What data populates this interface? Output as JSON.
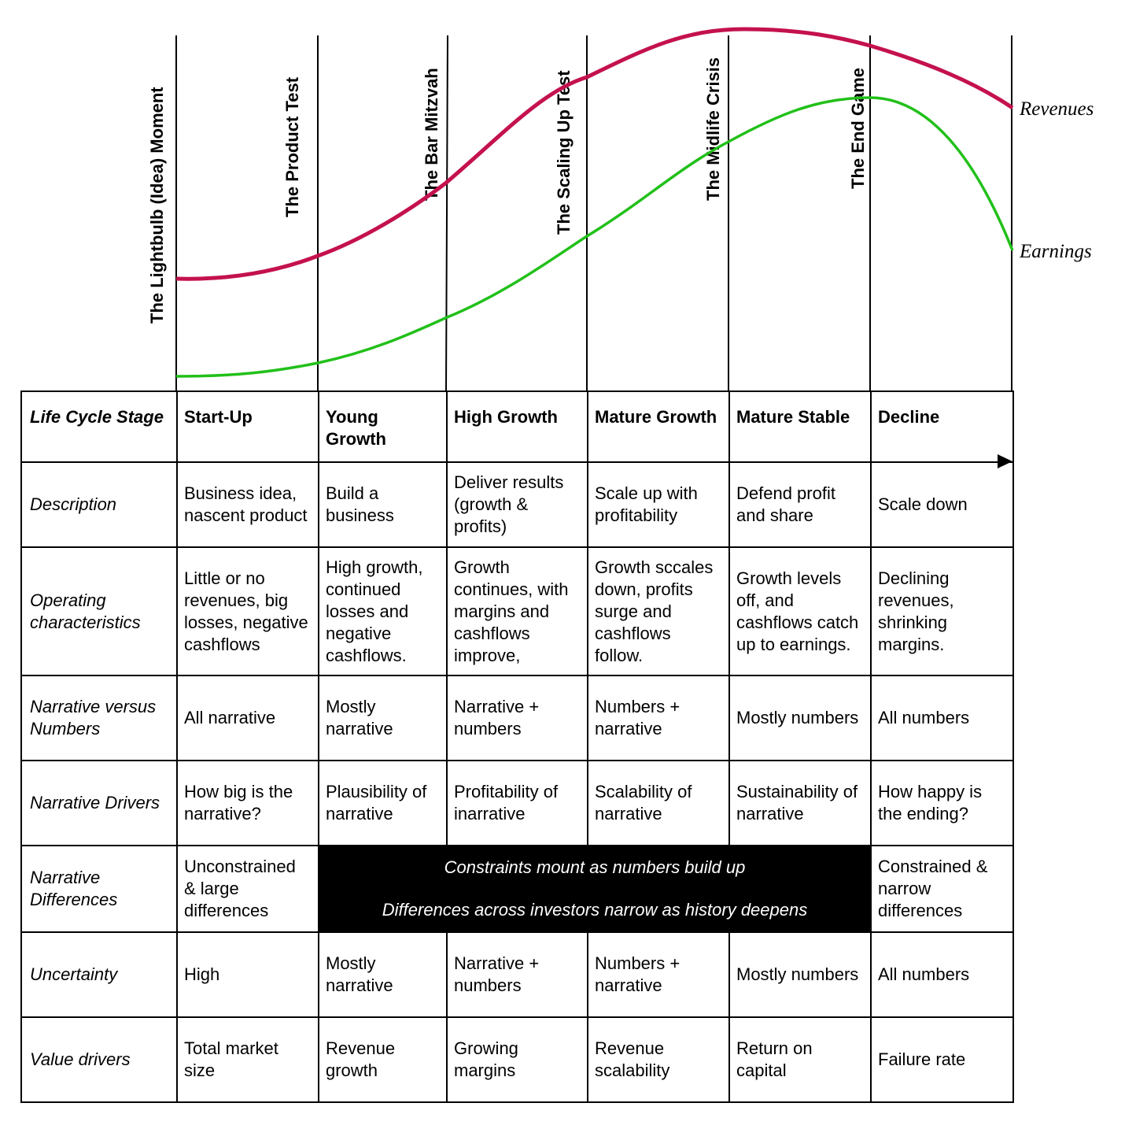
{
  "milestones": [
    "The Lightbulb (Idea) Moment",
    "The Product Test",
    "The Bar Mitzvah",
    "The Scaling Up Test",
    "The Midlife Crisis",
    "The End Game"
  ],
  "curves": {
    "revenues": {
      "label": "Revenues",
      "color": "#c4114f"
    },
    "earnings": {
      "label": "Earnings",
      "color": "#22c01a"
    }
  },
  "table": {
    "stage_header": "Life Cycle Stage",
    "stages": [
      "Start-Up",
      "Young Growth",
      "High Growth",
      "Mature Growth",
      "Mature Stable",
      "Decline"
    ],
    "rows": [
      {
        "label": "Description",
        "cells": [
          "Business idea, nascent product",
          "Build a business",
          "Deliver results (growth & profits)",
          "Scale up with profitability",
          "Defend profit and share",
          "Scale down"
        ]
      },
      {
        "label": "Operating characteristics",
        "cells": [
          "Little or no revenues, big losses, negative cashflows",
          "High growth, continued losses and negative cashflows.",
          "Growth continues, with margins and cashflows improve,",
          "Growth sccales down, profits surge and cashflows follow.",
          "Growth levels off, and cashflows catch up to earnings.",
          "Declining revenues, shrinking margins."
        ]
      },
      {
        "label": "Narrative versus Numbers",
        "cells": [
          "All narrative",
          "Mostly narrative",
          "Narrative + numbers",
          "Numbers + narrative",
          "Mostly numbers",
          "All numbers"
        ]
      },
      {
        "label": "Narrative Drivers",
        "cells": [
          "How big is the narrative?",
          "Plausibility of narrative",
          "Profitability of inarrative",
          "Scalability of narrative",
          "Sustainability of narrative",
          "How happy is the ending?"
        ]
      }
    ],
    "differences": {
      "label": "Narrative Differences",
      "first": "Unconstrained & large differences",
      "banner_line1": "Constraints mount as numbers build up",
      "banner_line2": "Differences across investors narrow as history deepens",
      "last": "Constrained & narrow differences"
    },
    "rows_after": [
      {
        "label": "Uncertainty",
        "cells": [
          "High",
          "Mostly narrative",
          "Narrative + numbers",
          "Numbers + narrative",
          "Mostly numbers",
          "All numbers"
        ]
      },
      {
        "label": "Value drivers",
        "cells": [
          "Total market size",
          "Revenue growth",
          "Growing margins",
          "Revenue scalability",
          "Return on capital",
          "Failure rate"
        ]
      }
    ]
  }
}
